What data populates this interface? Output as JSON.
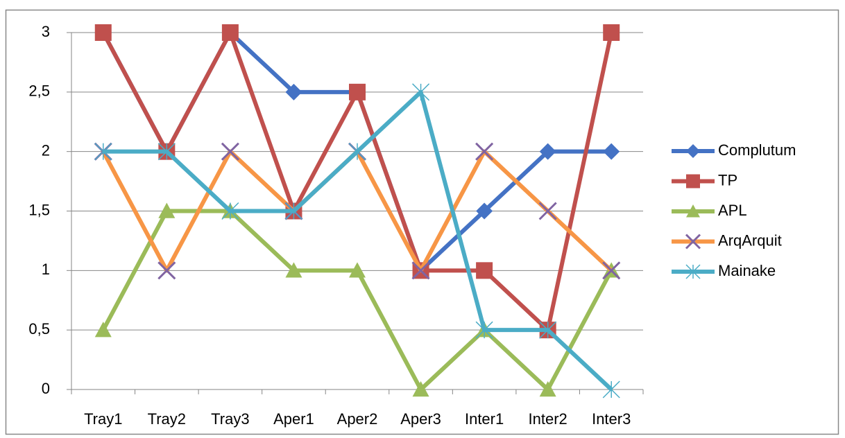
{
  "chart_data": {
    "type": "line",
    "categories": [
      "Tray1",
      "Tray2",
      "Tray3",
      "Aper1",
      "Aper2",
      "Aper3",
      "Inter1",
      "Inter2",
      "Inter3"
    ],
    "series": [
      {
        "name": "Complutum",
        "color": "#4472c4",
        "marker": "diamond",
        "values": [
          3,
          2,
          3,
          2.5,
          2.5,
          1,
          1.5,
          2,
          2
        ]
      },
      {
        "name": "TP",
        "color": "#c0504d",
        "marker": "square",
        "values": [
          3,
          2,
          3,
          1.5,
          2.5,
          1,
          1,
          0.5,
          3
        ]
      },
      {
        "name": "APL",
        "color": "#9bbb59",
        "marker": "triangle",
        "values": [
          0.5,
          1.5,
          1.5,
          1,
          1,
          0,
          0.5,
          0,
          1
        ]
      },
      {
        "name": "ArqArquit",
        "color": "#f79646",
        "marker": "x",
        "marker_color": "#8064a2",
        "values": [
          2,
          1,
          2,
          1.5,
          2,
          1,
          2,
          1.5,
          1
        ]
      },
      {
        "name": "Mainake",
        "color": "#4bacc6",
        "marker": "star",
        "values": [
          2,
          2,
          1.5,
          1.5,
          2,
          2.5,
          0.5,
          0.5,
          0
        ]
      }
    ],
    "ylim": [
      0,
      3
    ],
    "yticks": [
      0,
      {
        "value": 0.5,
        "label": "0,5"
      },
      1,
      {
        "value": 1.5,
        "label": "1,5"
      },
      2,
      {
        "value": 2.5,
        "label": "2,5"
      },
      3
    ],
    "grid": true,
    "legend": "right"
  }
}
